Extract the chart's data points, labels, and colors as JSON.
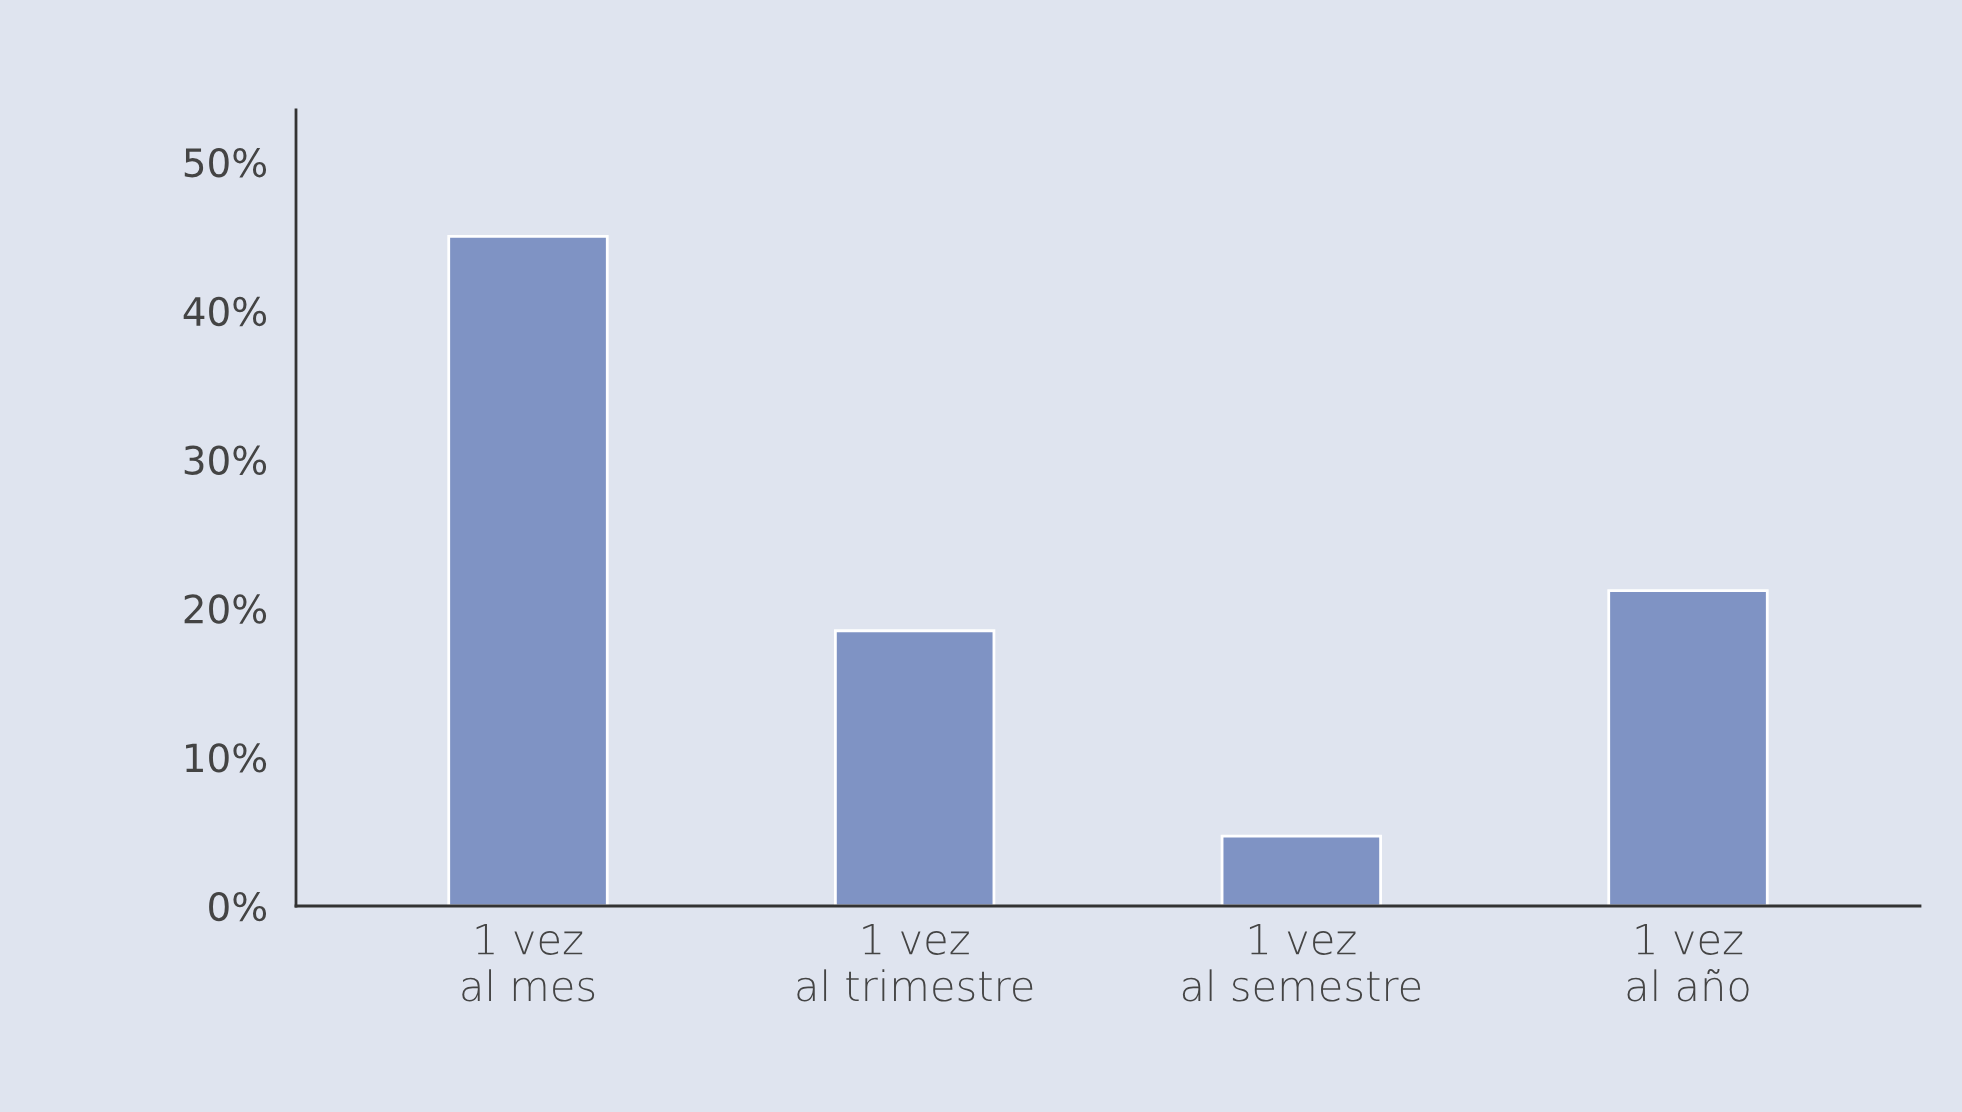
{
  "chart_data": {
    "type": "bar",
    "categories": [
      "1 vez\nal mes",
      "1 vez\nal trimestre",
      "1 vez\nal semestre",
      "1 vez\nal año"
    ],
    "values": [
      45,
      18.5,
      4.7,
      21.2
    ],
    "color": "#7f93c4",
    "ylim": [
      0,
      53.5
    ],
    "yticks": [
      {
        "value": 0,
        "label": "0%"
      },
      {
        "value": 10,
        "label": "10%"
      },
      {
        "value": 20,
        "label": "20%"
      },
      {
        "value": 30,
        "label": "30%"
      },
      {
        "value": 40,
        "label": "40%"
      },
      {
        "value": 50,
        "label": "50%"
      }
    ],
    "grid": false,
    "legend": false
  }
}
